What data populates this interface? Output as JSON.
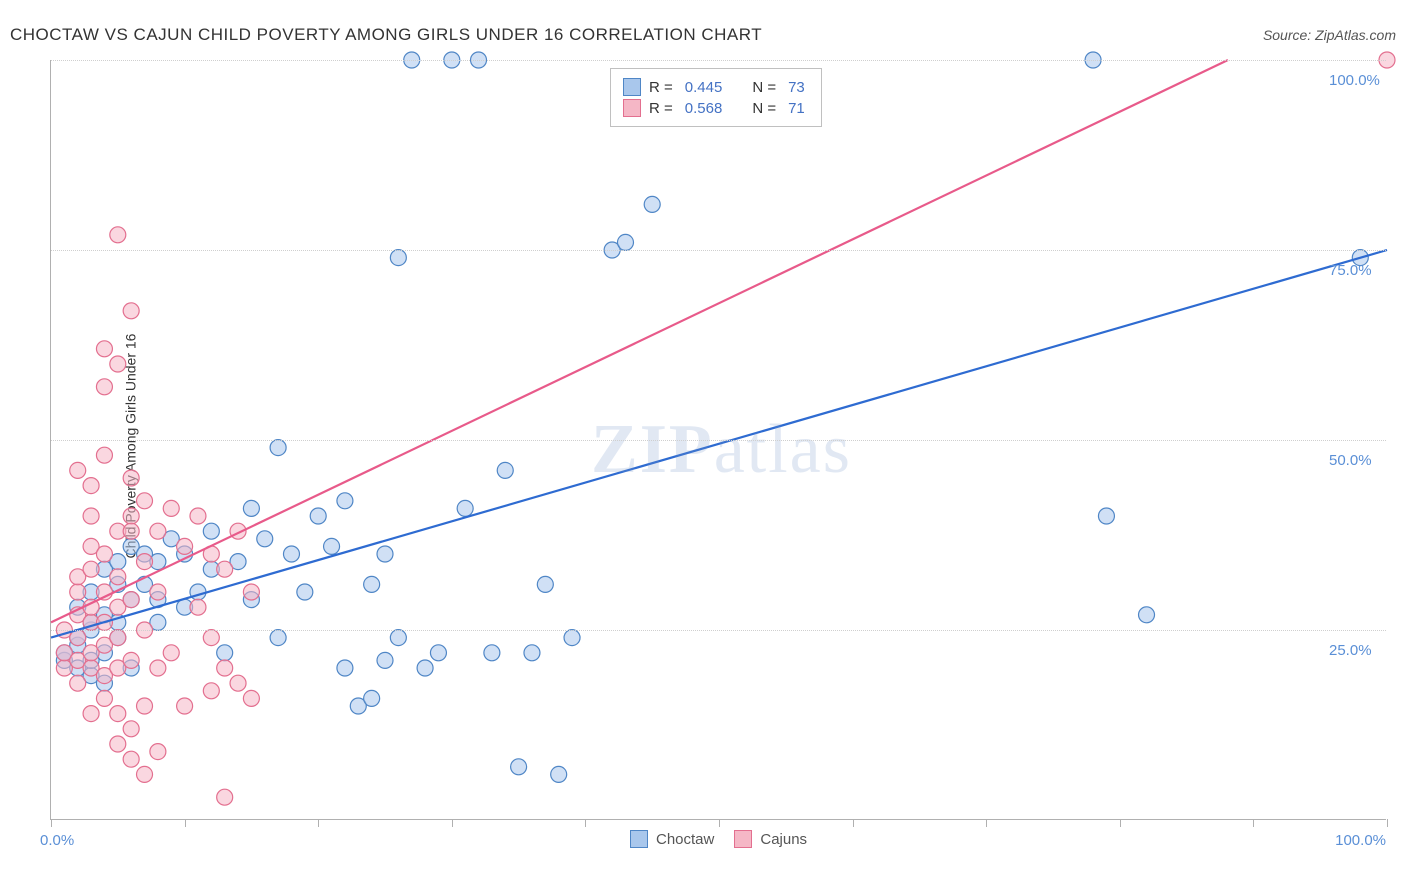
{
  "title": "CHOCTAW VS CAJUN CHILD POVERTY AMONG GIRLS UNDER 16 CORRELATION CHART",
  "source": "Source: ZipAtlas.com",
  "y_axis_label": "Child Poverty Among Girls Under 16",
  "watermark": "ZIPatlas",
  "chart": {
    "type": "scatter",
    "xlim": [
      0,
      100
    ],
    "ylim": [
      0,
      100
    ],
    "x_tick_step": 10,
    "y_ticks": [
      0,
      25,
      50,
      75,
      100
    ],
    "x_axis_labels": {
      "left": "0.0%",
      "right": "100.0%"
    },
    "grid_color": "#cfcfcf",
    "axis_label_color": "#5a8fd6",
    "background_color": "#ffffff",
    "marker_radius": 8,
    "marker_stroke_width": 1.2,
    "marker_opacity": 0.55,
    "line_width": 2.2,
    "series": [
      {
        "name": "Choctaw",
        "fill": "#a9c7ec",
        "stroke": "#4f86c6",
        "line_color": "#2e6bd1",
        "R": "0.445",
        "N": "73",
        "trend": {
          "y_at_x0": 24,
          "y_at_x100": 75
        },
        "points": [
          [
            1,
            21
          ],
          [
            1,
            22
          ],
          [
            2,
            20
          ],
          [
            2,
            23
          ],
          [
            2,
            24
          ],
          [
            2,
            28
          ],
          [
            3,
            19
          ],
          [
            3,
            21
          ],
          [
            3,
            25
          ],
          [
            3,
            30
          ],
          [
            4,
            18
          ],
          [
            4,
            22
          ],
          [
            4,
            27
          ],
          [
            4,
            33
          ],
          [
            5,
            24
          ],
          [
            5,
            26
          ],
          [
            5,
            34
          ],
          [
            6,
            20
          ],
          [
            6,
            29
          ],
          [
            6,
            36
          ],
          [
            7,
            31
          ],
          [
            7,
            35
          ],
          [
            8,
            26
          ],
          [
            8,
            34
          ],
          [
            9,
            37
          ],
          [
            10,
            28
          ],
          [
            10,
            35
          ],
          [
            11,
            30
          ],
          [
            12,
            38
          ],
          [
            12,
            33
          ],
          [
            13,
            22
          ],
          [
            14,
            34
          ],
          [
            15,
            29
          ],
          [
            15,
            41
          ],
          [
            16,
            37
          ],
          [
            17,
            24
          ],
          [
            17,
            49
          ],
          [
            18,
            35
          ],
          [
            19,
            30
          ],
          [
            20,
            40
          ],
          [
            21,
            36
          ],
          [
            22,
            20
          ],
          [
            22,
            42
          ],
          [
            23,
            15
          ],
          [
            24,
            16
          ],
          [
            24,
            31
          ],
          [
            25,
            21
          ],
          [
            25,
            35
          ],
          [
            26,
            24
          ],
          [
            26,
            74
          ],
          [
            27,
            100
          ],
          [
            28,
            20
          ],
          [
            29,
            22
          ],
          [
            30,
            100
          ],
          [
            31,
            41
          ],
          [
            32,
            100
          ],
          [
            33,
            22
          ],
          [
            34,
            46
          ],
          [
            35,
            7
          ],
          [
            36,
            22
          ],
          [
            37,
            31
          ],
          [
            38,
            6
          ],
          [
            39,
            24
          ],
          [
            42,
            75
          ],
          [
            43,
            76
          ],
          [
            45,
            81
          ],
          [
            78,
            100
          ],
          [
            79,
            40
          ],
          [
            82,
            27
          ],
          [
            98,
            74
          ],
          [
            3,
            26
          ],
          [
            5,
            31
          ],
          [
            8,
            29
          ]
        ]
      },
      {
        "name": "Cajuns",
        "fill": "#f5b7c6",
        "stroke": "#e36f8f",
        "line_color": "#e85a8a",
        "R": "0.568",
        "N": "71",
        "trend": {
          "y_at_x0": 26,
          "y_at_x100": 110
        },
        "points": [
          [
            1,
            20
          ],
          [
            1,
            22
          ],
          [
            1,
            25
          ],
          [
            2,
            18
          ],
          [
            2,
            21
          ],
          [
            2,
            24
          ],
          [
            2,
            27
          ],
          [
            2,
            30
          ],
          [
            2,
            32
          ],
          [
            2,
            46
          ],
          [
            3,
            14
          ],
          [
            3,
            20
          ],
          [
            3,
            22
          ],
          [
            3,
            26
          ],
          [
            3,
            28
          ],
          [
            3,
            33
          ],
          [
            3,
            36
          ],
          [
            3,
            40
          ],
          [
            3,
            44
          ],
          [
            4,
            16
          ],
          [
            4,
            19
          ],
          [
            4,
            23
          ],
          [
            4,
            26
          ],
          [
            4,
            30
          ],
          [
            4,
            35
          ],
          [
            4,
            48
          ],
          [
            4,
            57
          ],
          [
            4,
            62
          ],
          [
            5,
            10
          ],
          [
            5,
            14
          ],
          [
            5,
            20
          ],
          [
            5,
            24
          ],
          [
            5,
            28
          ],
          [
            5,
            32
          ],
          [
            5,
            38
          ],
          [
            5,
            60
          ],
          [
            5,
            77
          ],
          [
            6,
            8
          ],
          [
            6,
            12
          ],
          [
            6,
            21
          ],
          [
            6,
            29
          ],
          [
            6,
            40
          ],
          [
            6,
            45
          ],
          [
            6,
            67
          ],
          [
            7,
            6
          ],
          [
            7,
            15
          ],
          [
            7,
            25
          ],
          [
            7,
            34
          ],
          [
            7,
            42
          ],
          [
            8,
            9
          ],
          [
            8,
            20
          ],
          [
            8,
            30
          ],
          [
            8,
            38
          ],
          [
            9,
            22
          ],
          [
            9,
            41
          ],
          [
            10,
            15
          ],
          [
            10,
            36
          ],
          [
            11,
            28
          ],
          [
            11,
            40
          ],
          [
            12,
            17
          ],
          [
            12,
            24
          ],
          [
            12,
            35
          ],
          [
            13,
            20
          ],
          [
            13,
            33
          ],
          [
            13,
            3
          ],
          [
            14,
            18
          ],
          [
            14,
            38
          ],
          [
            15,
            16
          ],
          [
            15,
            30
          ],
          [
            100,
            100
          ],
          [
            6,
            38
          ]
        ]
      }
    ]
  },
  "legend_top": {
    "r_label": "R =",
    "n_label": "N ="
  },
  "legend_bottom": {
    "items": [
      "Choctaw",
      "Cajuns"
    ]
  },
  "y_tick_labels": {
    "25": "25.0%",
    "50": "50.0%",
    "75": "75.0%",
    "100": "100.0%"
  }
}
